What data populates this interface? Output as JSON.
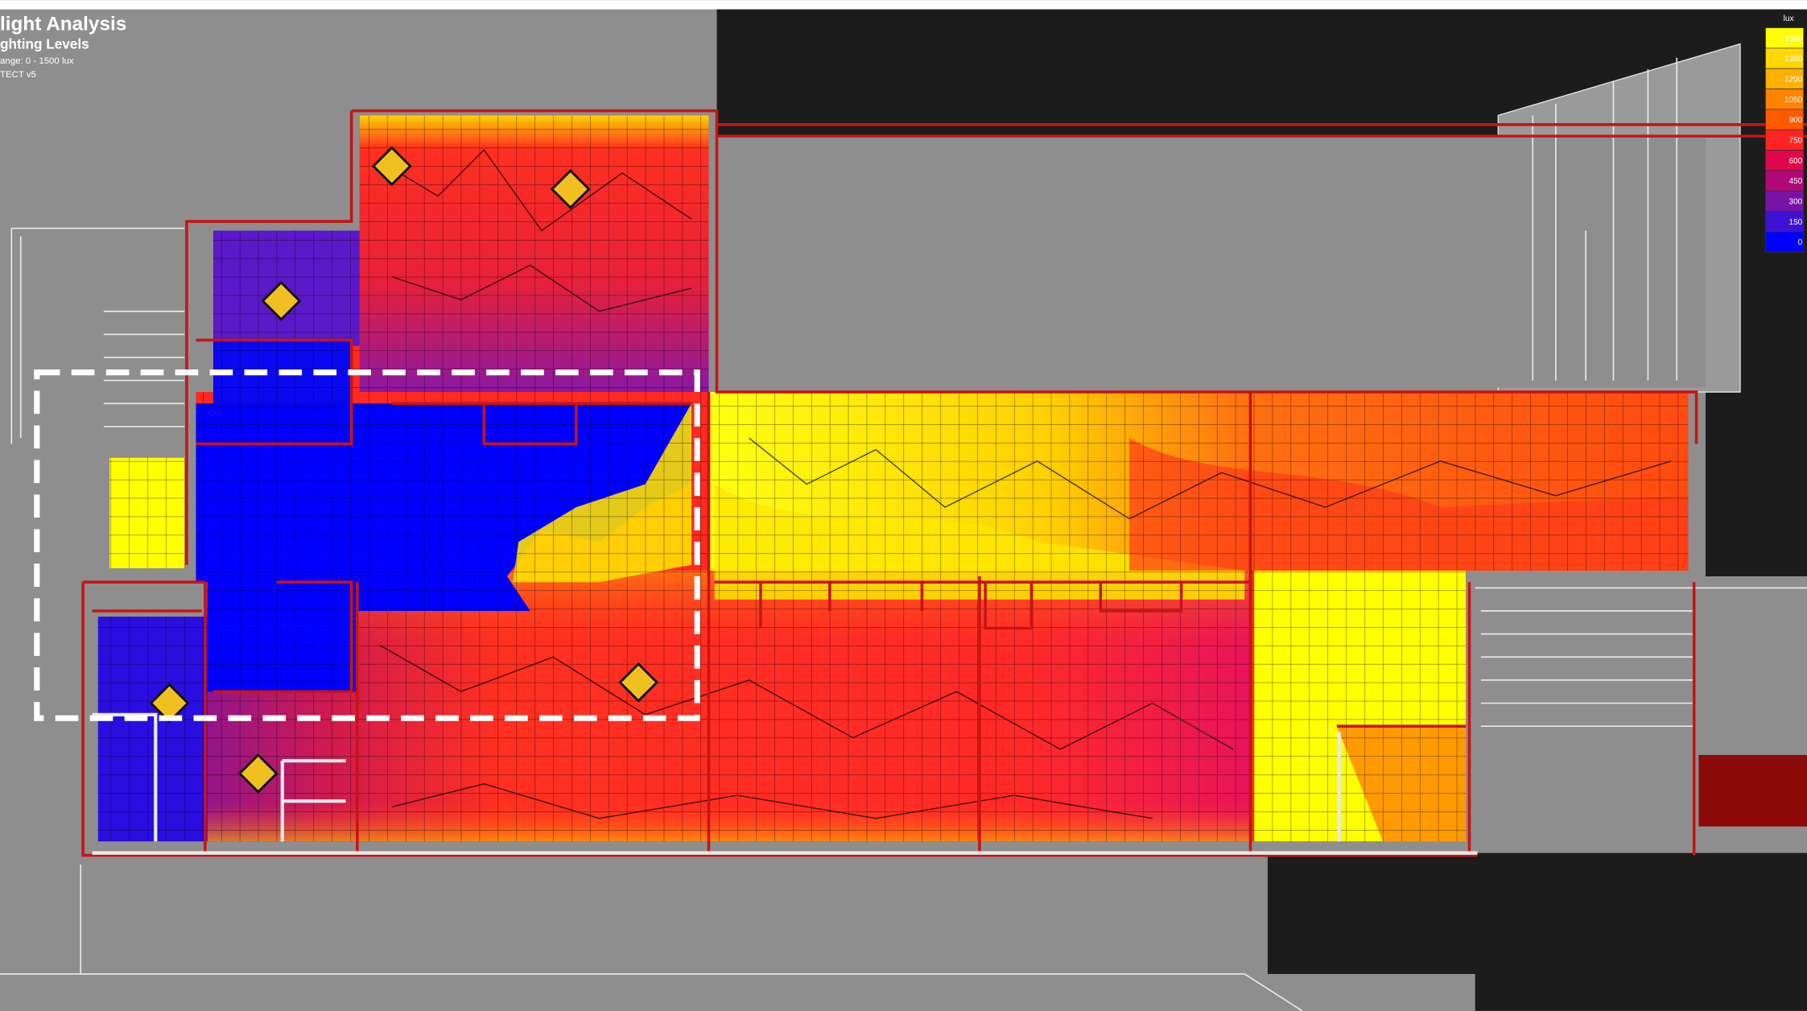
{
  "header": {
    "title": "light Analysis",
    "subtitle": "ghting Levels",
    "range": "ange: 0 - 1500 lux",
    "software": "TECT v5"
  },
  "legend": {
    "unit": "lux",
    "entries": [
      {
        "label": "1500",
        "color": "#ffff00"
      },
      {
        "label": "1350",
        "color": "#ffd800"
      },
      {
        "label": "1200",
        "color": "#ffb000"
      },
      {
        "label": "1050",
        "color": "#ff8400"
      },
      {
        "label": "900",
        "color": "#ff5a00"
      },
      {
        "label": "750",
        "color": "#ff2424"
      },
      {
        "label": "600",
        "color": "#e0064c"
      },
      {
        "label": "450",
        "color": "#b00878"
      },
      {
        "label": "300",
        "color": "#7614a8"
      },
      {
        "label": "150",
        "color": "#3e12d4"
      },
      {
        "label": "0",
        "color": "#0000ff"
      }
    ]
  }
}
